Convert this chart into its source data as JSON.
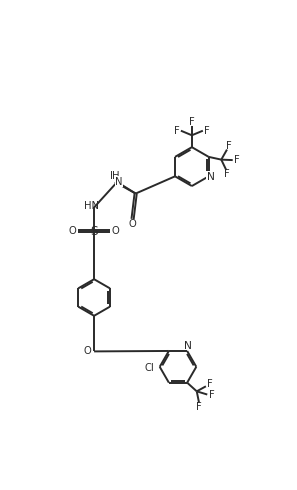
{
  "bg_color": "#ffffff",
  "line_color": "#2a2a2a",
  "line_width": 1.4,
  "font_size": 7.2,
  "figsize": [
    2.97,
    4.9
  ],
  "dpi": 100,
  "xlim": [
    0,
    10
  ],
  "ylim": [
    0,
    16.5
  ]
}
